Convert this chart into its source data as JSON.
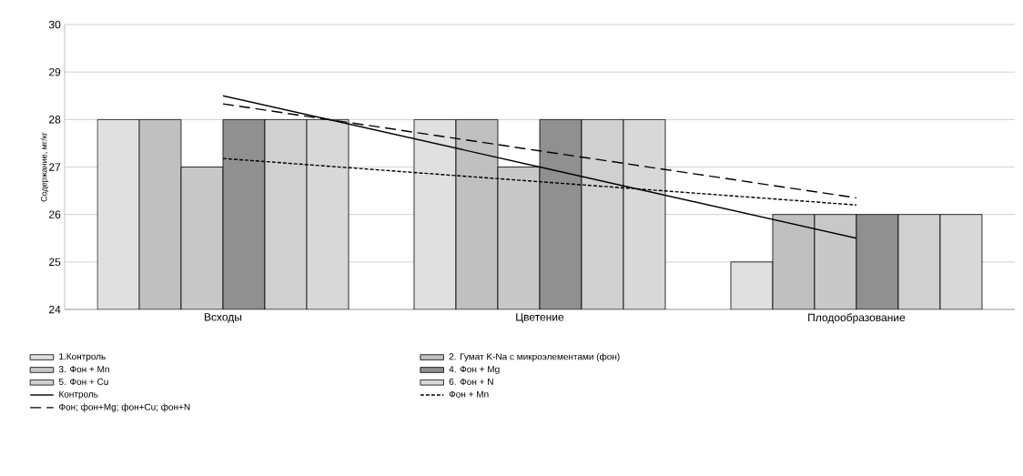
{
  "chart_data": {
    "type": "bar",
    "ylabel": "Содержание, мг/кг",
    "categories": [
      "Всходы",
      "Цветение",
      "Плодообразование"
    ],
    "ylim": [
      24,
      30
    ],
    "yticks": [
      24,
      25,
      26,
      27,
      28,
      29,
      30
    ],
    "grid": "y",
    "legend": "bottom",
    "series": [
      {
        "name": "1.Контроль",
        "color": "#e0e0e0",
        "values": [
          28,
          28,
          25
        ]
      },
      {
        "name": "2. Гумат K-Na с микроэлементами (фон)",
        "color": "#c0c0c0",
        "values": [
          28,
          28,
          26
        ]
      },
      {
        "name": "3. Фон + Mn",
        "color": "#c8c8c8",
        "values": [
          27,
          27,
          26
        ]
      },
      {
        "name": "4. Фон + Mg",
        "color": "#909090",
        "values": [
          28,
          28,
          26
        ]
      },
      {
        "name": "5. Фон + Cu",
        "color": "#d0d0d0",
        "values": [
          28,
          28,
          26
        ]
      },
      {
        "name": "6. Фон + N",
        "color": "#d8d8d8",
        "values": [
          28,
          28,
          26
        ]
      },
      {
        "name": "Контроль",
        "type": "line",
        "color": "#000000",
        "line_style": "solid",
        "values": [
          28.5,
          27,
          25.5
        ]
      },
      {
        "name": "Фон + Mn",
        "type": "line",
        "color": "#000000",
        "line_style": "dotted",
        "values": [
          27.18,
          26.69,
          26.2
        ]
      },
      {
        "name": "Фон; фон+Mg; фон+Cu; фон+N",
        "type": "line",
        "color": "#000000",
        "line_style": "dashed",
        "values": [
          28.33,
          27.34,
          26.35
        ]
      }
    ]
  }
}
